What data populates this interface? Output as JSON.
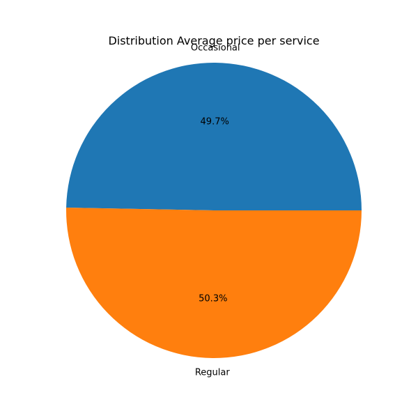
{
  "chart_data": {
    "type": "pie",
    "title": "Distribution Average price per service",
    "slices": [
      {
        "label": "Occasional",
        "value": 49.7,
        "pct_label": "49.7%",
        "color": "#1f77b4"
      },
      {
        "label": "Regular",
        "value": 50.3,
        "pct_label": "50.3%",
        "color": "#ff7f0e"
      }
    ],
    "start_angle_deg": 0,
    "direction": "counterclockwise"
  }
}
